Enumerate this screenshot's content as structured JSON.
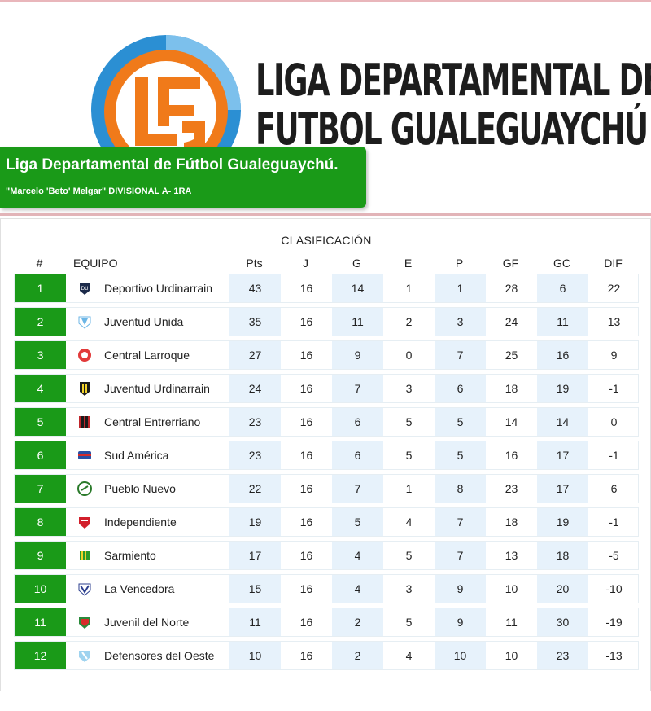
{
  "header": {
    "league_name_lines": [
      "LIGA DEPARTAMENTAL DE",
      "FUTBOL GUALEGUAYCHÚ"
    ],
    "banner_title": "Liga Departamental de Fútbol Gualeguaychú.",
    "banner_subtitle": "\"Marcelo 'Beto' Melgar\" DIVISIONAL A- 1RA",
    "logo_icon": "lfg-logo-icon"
  },
  "table": {
    "title": "CLASIFICACIÓN",
    "columns": [
      "#",
      "EQUIPO",
      "Pts",
      "J",
      "G",
      "E",
      "P",
      "GF",
      "GC",
      "DIF"
    ],
    "rows": [
      {
        "rank": "1",
        "team": "Deportivo Urdinarrain",
        "crest": "deportivo-urdinarrain-crest-icon",
        "pts": "43",
        "j": "16",
        "g": "14",
        "e": "1",
        "p": "1",
        "gf": "28",
        "gc": "6",
        "dif": "22"
      },
      {
        "rank": "2",
        "team": "Juventud Unida",
        "crest": "juventud-unida-crest-icon",
        "pts": "35",
        "j": "16",
        "g": "11",
        "e": "2",
        "p": "3",
        "gf": "24",
        "gc": "11",
        "dif": "13"
      },
      {
        "rank": "3",
        "team": "Central Larroque",
        "crest": "central-larroque-crest-icon",
        "pts": "27",
        "j": "16",
        "g": "9",
        "e": "0",
        "p": "7",
        "gf": "25",
        "gc": "16",
        "dif": "9"
      },
      {
        "rank": "4",
        "team": "Juventud Urdinarrain",
        "crest": "juventud-urdinarrain-crest-icon",
        "pts": "24",
        "j": "16",
        "g": "7",
        "e": "3",
        "p": "6",
        "gf": "18",
        "gc": "19",
        "dif": "-1"
      },
      {
        "rank": "5",
        "team": "Central Entrerriano",
        "crest": "central-entrerriano-crest-icon",
        "pts": "23",
        "j": "16",
        "g": "6",
        "e": "5",
        "p": "5",
        "gf": "14",
        "gc": "14",
        "dif": "0"
      },
      {
        "rank": "6",
        "team": "Sud América",
        "crest": "sud-america-crest-icon",
        "pts": "23",
        "j": "16",
        "g": "6",
        "e": "5",
        "p": "5",
        "gf": "16",
        "gc": "17",
        "dif": "-1"
      },
      {
        "rank": "7",
        "team": "Pueblo Nuevo",
        "crest": "pueblo-nuevo-crest-icon",
        "pts": "22",
        "j": "16",
        "g": "7",
        "e": "1",
        "p": "8",
        "gf": "23",
        "gc": "17",
        "dif": "6"
      },
      {
        "rank": "8",
        "team": "Independiente",
        "crest": "independiente-crest-icon",
        "pts": "19",
        "j": "16",
        "g": "5",
        "e": "4",
        "p": "7",
        "gf": "18",
        "gc": "19",
        "dif": "-1"
      },
      {
        "rank": "9",
        "team": "Sarmiento",
        "crest": "sarmiento-crest-icon",
        "pts": "17",
        "j": "16",
        "g": "4",
        "e": "5",
        "p": "7",
        "gf": "13",
        "gc": "18",
        "dif": "-5"
      },
      {
        "rank": "10",
        "team": "La Vencedora",
        "crest": "la-vencedora-crest-icon",
        "pts": "15",
        "j": "16",
        "g": "4",
        "e": "3",
        "p": "9",
        "gf": "10",
        "gc": "20",
        "dif": "-10"
      },
      {
        "rank": "11",
        "team": "Juvenil del Norte",
        "crest": "juvenil-del-norte-crest-icon",
        "pts": "11",
        "j": "16",
        "g": "2",
        "e": "5",
        "p": "9",
        "gf": "11",
        "gc": "30",
        "dif": "-19"
      },
      {
        "rank": "12",
        "team": "Defensores del Oeste",
        "crest": "defensores-del-oeste-crest-icon",
        "pts": "10",
        "j": "16",
        "g": "2",
        "e": "4",
        "p": "10",
        "gf": "10",
        "gc": "23",
        "dif": "-13"
      }
    ]
  },
  "colors": {
    "accent_green": "#1a9a18",
    "shade_blue": "#e7f2fb",
    "logo_orange": "#f07a1a",
    "logo_blue": "#2b8fd3"
  }
}
